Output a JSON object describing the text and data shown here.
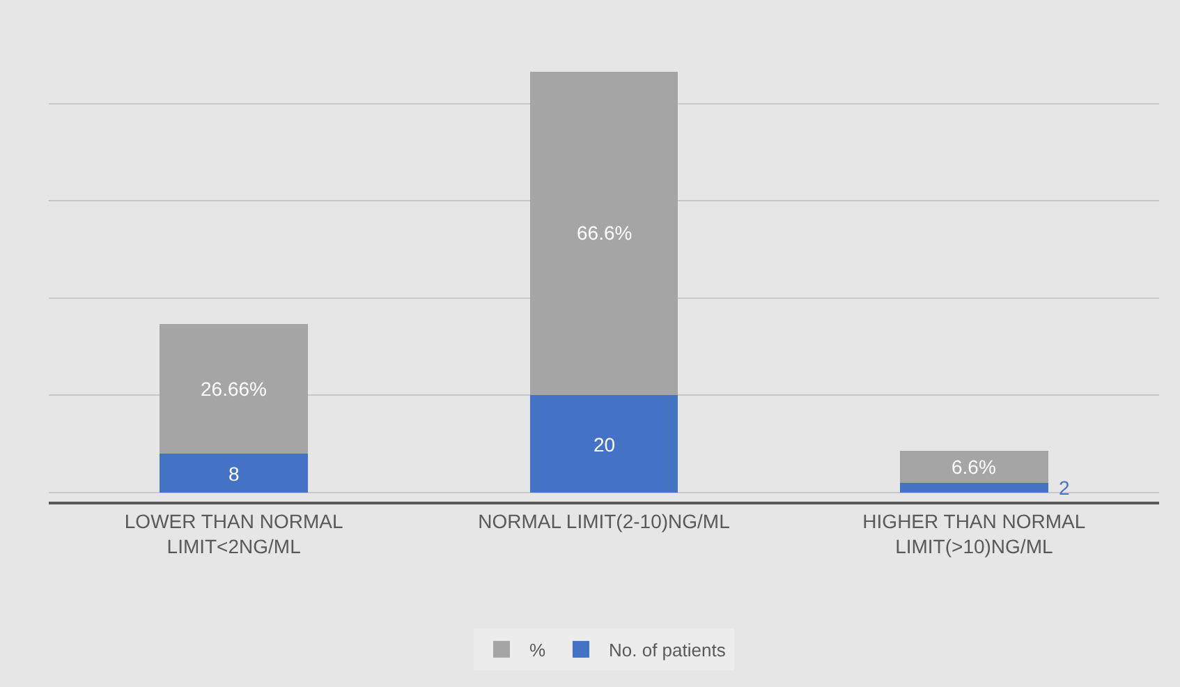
{
  "chart_data": {
    "type": "bar",
    "stacked": true,
    "grid": "y",
    "legend": "bottom",
    "tick_labels": "x",
    "data_labels": true,
    "categories": [
      "LOWER THAN NORMAL LIMIT<2NG/ML",
      "NORMAL LIMIT(2-10)NG/ML",
      "HIGHER THAN NORMAL LIMIT(>10)NG/ML"
    ],
    "series": [
      {
        "name": "No. of patients",
        "color": "#4472c4",
        "values": [
          8,
          20,
          2
        ],
        "value_labels": [
          "8",
          "20",
          "2"
        ]
      },
      {
        "name": "%",
        "color": "#a5a5a5",
        "values": [
          26.66,
          66.6,
          6.6
        ],
        "value_labels": [
          "26.66%",
          "66.6%",
          "6.6%"
        ]
      }
    ]
  }
}
